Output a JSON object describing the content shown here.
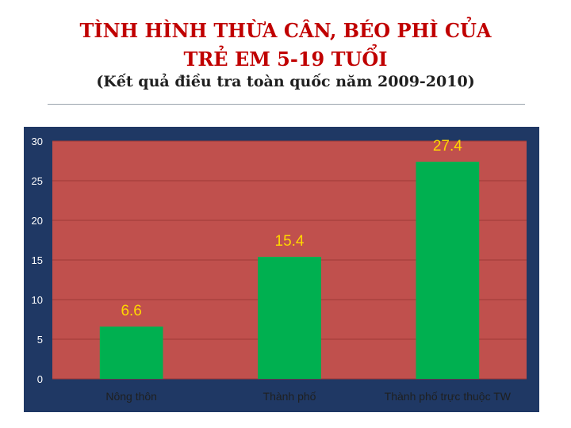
{
  "title_line1": "TÌNH HÌNH THỪA CÂN, BÉO PHÌ CỦA",
  "title_line2": "TRẺ EM 5-19 TUỔI",
  "subtitle": "(Kết quả điều tra toàn quốc năm 2009-2010)",
  "colors": {
    "panel": "#1f3864",
    "plot_area": "#c0504d",
    "bar": "#00b050",
    "value_label": "#ffd700",
    "tick_label": "#ffffff",
    "category_label": "#1f1f1f"
  },
  "chart_data": {
    "type": "bar",
    "categories": [
      "Nông thôn",
      "Thành phố",
      "Thành phố trực thuộc TW"
    ],
    "values": [
      6.6,
      15.4,
      27.4
    ],
    "value_labels": [
      "6.6",
      "15.4",
      "27.4"
    ],
    "yticks": [
      0,
      5,
      10,
      15,
      20,
      25,
      30
    ],
    "ylim": [
      0,
      30
    ],
    "grid": true,
    "legend": "none"
  }
}
